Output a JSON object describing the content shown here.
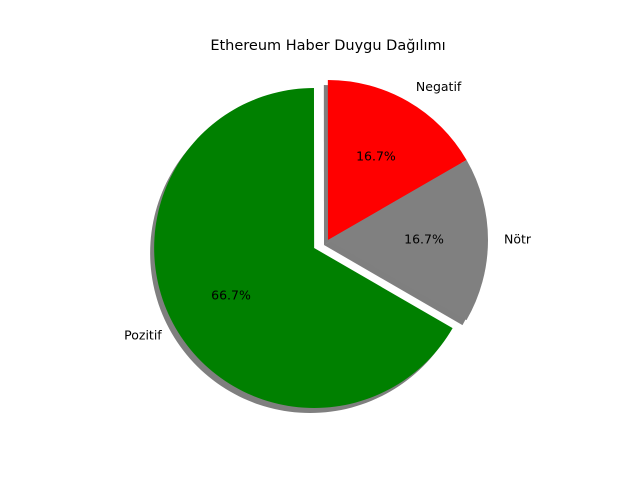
{
  "chart_data": {
    "type": "pie",
    "title": "Ethereum Haber Duygu Dağılımı",
    "categories": [
      "Negatif",
      "Pozitif",
      "Nötr"
    ],
    "values": [
      16.7,
      66.7,
      16.7
    ],
    "percent_labels": [
      "16.7%",
      "66.7%",
      "16.7%"
    ],
    "colors": [
      "#ff0000",
      "#008000",
      "#808080"
    ],
    "exploded": [
      "Pozitif"
    ],
    "shadow": true,
    "start_angle_deg": 30,
    "direction": "counterclockwise"
  }
}
